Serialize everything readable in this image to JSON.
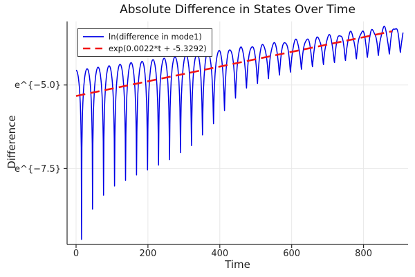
{
  "title": "Absolute Difference in States Over Time",
  "axes": {
    "xlabel": "Time",
    "ylabel": "Difference",
    "xtick_labels": [
      "0",
      "200",
      "400",
      "600",
      "800"
    ],
    "ytick_labels": [
      "e^{−5.0}",
      "e^{−7.5}"
    ]
  },
  "colors": {
    "series_blue": "#0000e6",
    "fit_red": "#f21616",
    "grid": "#e8e8e8",
    "axis": "#2a2a2a",
    "tick_text": "#262626",
    "background": "#ffffff"
  },
  "chart_data": {
    "type": "line",
    "title": "Absolute Difference in States Over Time",
    "xlabel": "Time",
    "ylabel": "Difference",
    "yscale": "ln",
    "xlim": [
      -25,
      924
    ],
    "ylim": [
      -9.77,
      -3.1
    ],
    "xticks": [
      0,
      200,
      400,
      600,
      800
    ],
    "xtick_labels": [
      "0",
      "200",
      "400",
      "600",
      "800"
    ],
    "ytick_values": [
      -5.0,
      -7.5
    ],
    "ytick_labels": [
      "e^{−5.0}",
      "e^{−7.5}"
    ],
    "grid": true,
    "legend_position": "top-left",
    "series": [
      {
        "name": "ln(difference in mode1)",
        "color": "#0000e6",
        "style": "solid",
        "line_width": 1.5,
        "model": {
          "t_start": 0,
          "t_end": 910,
          "dt": 0.9,
          "envelope_intercept_ln": -4.56,
          "envelope_slope_ln": 0.001467,
          "omega": 0.1027,
          "ripple_amp": 0.13,
          "ripple_freq": 0.33,
          "ripple_phase": 1.0,
          "ripple_norm": 910,
          "floor_breakpoints_t": [
            0,
            40,
            90,
            150,
            250,
            320,
            380,
            430,
            470,
            550,
            650,
            750,
            910
          ],
          "floor_breakpoints_ln": [
            -10.3,
            -8.9,
            -8.25,
            -7.95,
            -7.5,
            -7.0,
            -6.3,
            -5.6,
            -5.15,
            -4.78,
            -4.5,
            -4.3,
            -4.05
          ],
          "clip_min_ln": -9.62
        }
      },
      {
        "name": "exp(0.0022*t + -5.3292)",
        "color": "#f21616",
        "style": "dashed",
        "line_width": 2.6,
        "dash": [
          13.5,
          7.5
        ],
        "fit": {
          "slope": 0.0022,
          "intercept": -5.3292,
          "t_start": 0,
          "t_end": 880
        }
      }
    ]
  }
}
